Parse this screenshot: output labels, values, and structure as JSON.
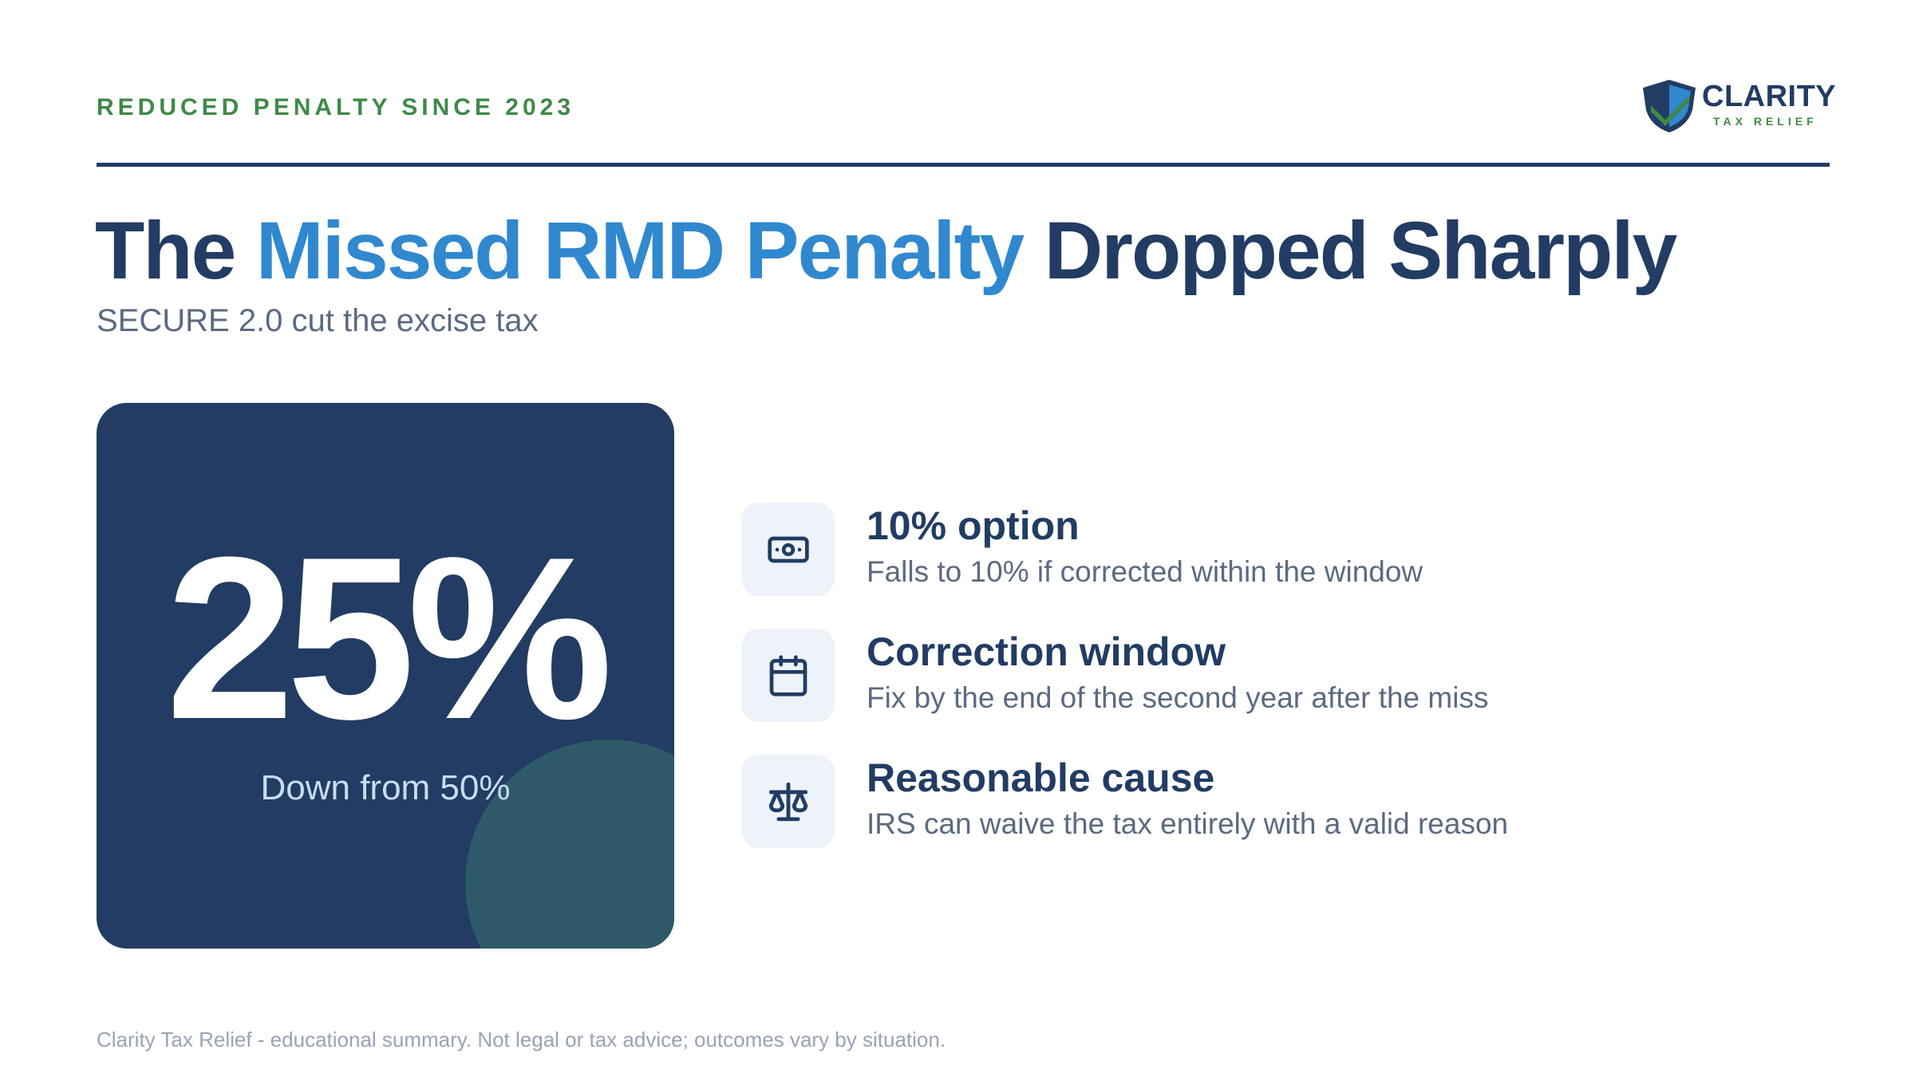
{
  "eyebrow": "REDUCED PENALTY SINCE 2023",
  "logo": {
    "wordmark": "CLARITY",
    "tagline": "TAX RELIEF"
  },
  "title": {
    "part1": "The ",
    "highlight": "Missed RMD Penalty",
    "part2": " Dropped Sharply"
  },
  "subtitle": "SECURE 2.0 cut the excise tax",
  "stat": {
    "value": "25%",
    "caption": "Down from 50%"
  },
  "features": [
    {
      "icon": "money-icon",
      "title": "10% option",
      "description": "Falls to 10% if corrected within the window"
    },
    {
      "icon": "calendar-icon",
      "title": "Correction window",
      "description": "Fix by the end of the second year after the miss"
    },
    {
      "icon": "scales-icon",
      "title": "Reasonable cause",
      "description": "IRS can waive the tax entirely with a valid reason"
    }
  ],
  "footer": "Clarity Tax Relief - educational summary. Not legal or tax advice; outcomes vary by situation.",
  "colors": {
    "navy": "#223c63",
    "accent_blue": "#3088cf",
    "green": "#3f8a46",
    "muted": "#5b6a80",
    "card_circle": "#2d5969"
  }
}
